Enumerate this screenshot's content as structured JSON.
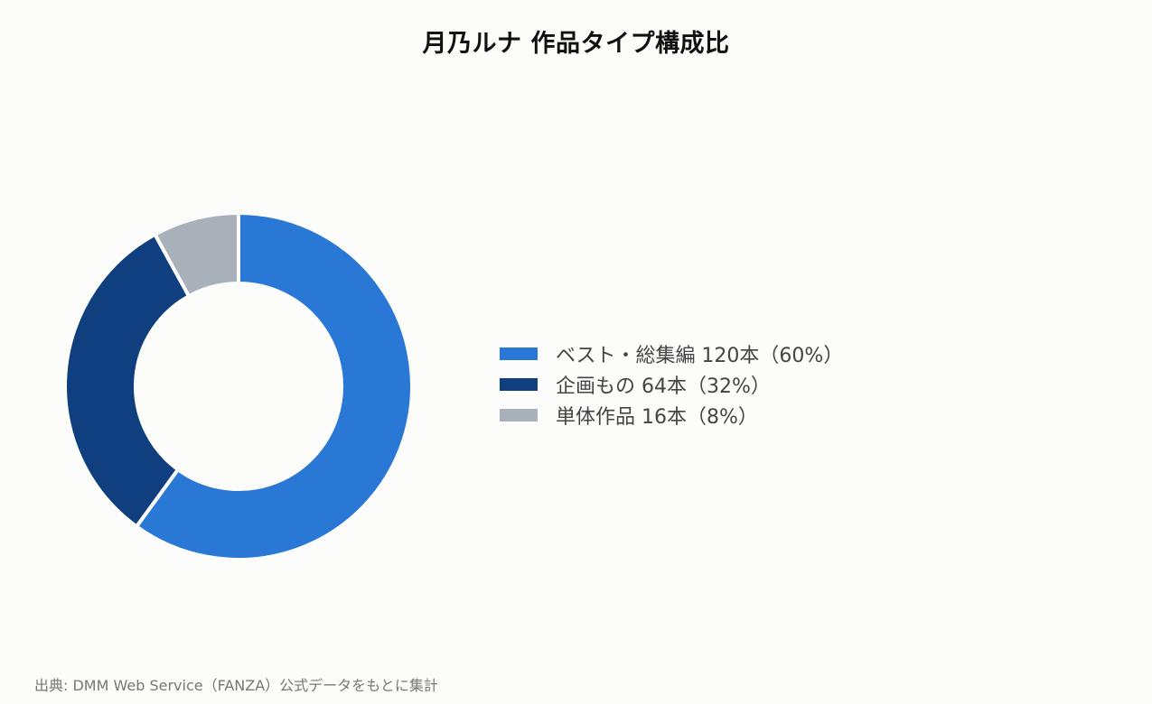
{
  "title": "月乃ルナ 作品タイプ構成比",
  "source": "出典: DMM Web Service（FANZA）公式データをもとに集計",
  "chart_data": {
    "type": "pie",
    "donut": true,
    "title": "月乃ルナ 作品タイプ構成比",
    "start_angle_deg": 0,
    "direction": "clockwise",
    "legend_position": "right",
    "slices": [
      {
        "label": "ベスト・総集編 120本（60%）",
        "name": "ベスト・総集編",
        "value": 120,
        "percent": 60,
        "color": "#2a78d6"
      },
      {
        "label": "企画もの 64本（32%）",
        "name": "企画もの",
        "value": 64,
        "percent": 32,
        "color": "#0f3f7f"
      },
      {
        "label": "単体作品 16本（8%）",
        "name": "単体作品",
        "value": 16,
        "percent": 8,
        "color": "#a8b0ba"
      }
    ]
  }
}
